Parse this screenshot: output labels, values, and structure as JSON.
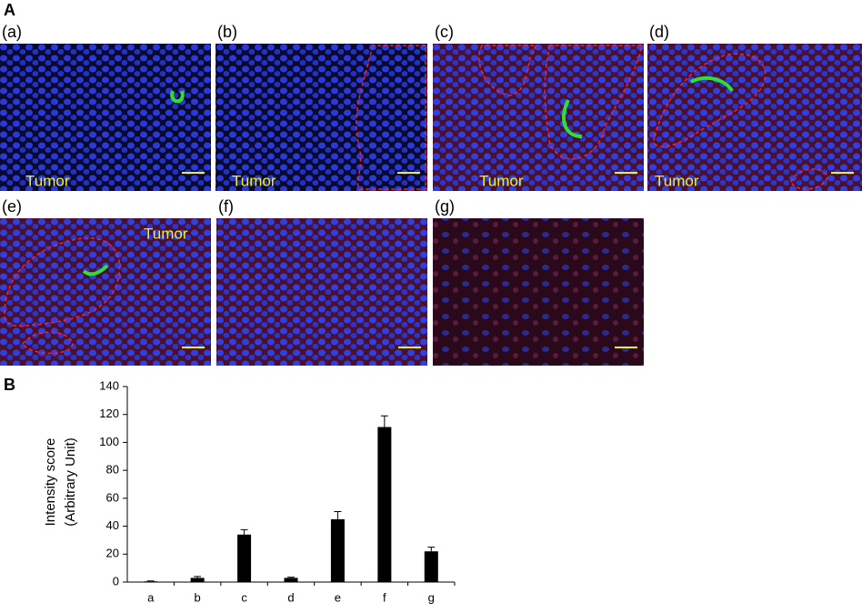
{
  "panel_labels": [
    "A",
    "B"
  ],
  "images": [
    {
      "label": "(a)",
      "annotation": "Tumor"
    },
    {
      "label": "(b)",
      "annotation": "Tumor"
    },
    {
      "label": "(c)",
      "annotation": "Tumor"
    },
    {
      "label": "(d)",
      "annotation": "Tumor"
    },
    {
      "label": "(e)",
      "annotation": "Tumor"
    },
    {
      "label": "(f)"
    },
    {
      "label": "(g)"
    }
  ],
  "chart_data": {
    "type": "bar",
    "y_label": [
      "Intensity score",
      "(Arbitrary Unit)"
    ],
    "categories": [
      "a",
      "b",
      "c",
      "d",
      "e",
      "f",
      "g"
    ],
    "values": [
      0.5,
      3,
      34,
      3,
      45,
      111,
      22
    ],
    "errors": [
      0.3,
      1,
      3.5,
      0.5,
      5.5,
      8,
      3
    ],
    "color": "#000000",
    "ylim": [
      0,
      140
    ],
    "yticks": [
      0,
      20,
      40,
      60,
      80,
      100,
      120,
      140
    ]
  }
}
